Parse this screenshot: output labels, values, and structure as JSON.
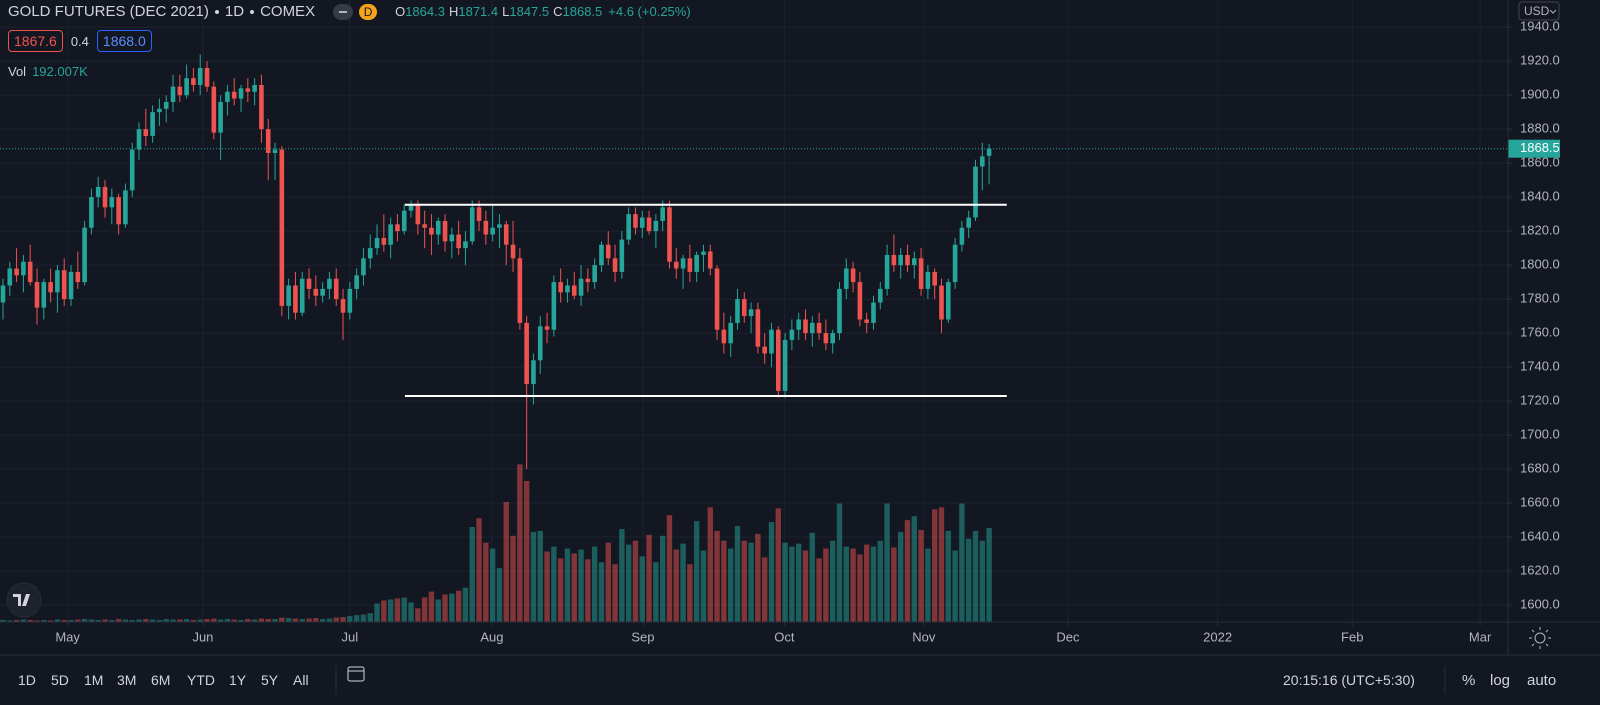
{
  "header": {
    "symbol": "GOLD FUTURES (DEC 2021)",
    "interval": "1D",
    "exchange": "COMEX",
    "badge": "D",
    "ohlc": [
      {
        "key": "O",
        "value": "1864.3"
      },
      {
        "key": "H",
        "value": "1871.4"
      },
      {
        "key": "L",
        "value": "1847.5"
      },
      {
        "key": "C",
        "value": "1868.5"
      }
    ],
    "change": "+4.6 (+0.25%)",
    "bid": "1867.6",
    "spread": "0.4",
    "ask": "1868.0",
    "vol_title": "Vol",
    "vol_value": "192.007K"
  },
  "chart_data": {
    "type": "candlestick",
    "currency": "USD",
    "grid": true,
    "colors": {
      "up": "#26a69a",
      "down": "#ef5350"
    },
    "ylim": [
      1590,
      1956
    ],
    "yticks": [
      {
        "value": 1600,
        "label": "1600.0"
      },
      {
        "value": 1620,
        "label": "1620.0"
      },
      {
        "value": 1640,
        "label": "1640.0"
      },
      {
        "value": 1660,
        "label": "1660.0"
      },
      {
        "value": 1680,
        "label": "1680.0"
      },
      {
        "value": 1700,
        "label": "1700.0"
      },
      {
        "value": 1720,
        "label": "1720.0"
      },
      {
        "value": 1740,
        "label": "1740.0"
      },
      {
        "value": 1760,
        "label": "1760.0"
      },
      {
        "value": 1780,
        "label": "1780.0"
      },
      {
        "value": 1800,
        "label": "1800.0"
      },
      {
        "value": 1820,
        "label": "1820.0"
      },
      {
        "value": 1840,
        "label": "1840.0"
      },
      {
        "value": 1860,
        "label": "1860.0"
      },
      {
        "value": 1880,
        "label": "1880.0"
      },
      {
        "value": 1900,
        "label": "1900.0"
      },
      {
        "value": 1920,
        "label": "1920.0"
      },
      {
        "value": 1940,
        "label": "1940.0"
      }
    ],
    "xlim": [
      -0.44,
      221.3
    ],
    "xticks": [
      {
        "value": 9.5,
        "label": "May"
      },
      {
        "value": 29.4,
        "label": "Jun"
      },
      {
        "value": 51,
        "label": "Jul"
      },
      {
        "value": 71.9,
        "label": "Aug"
      },
      {
        "value": 94.1,
        "label": "Sep"
      },
      {
        "value": 114.9,
        "label": "Oct"
      },
      {
        "value": 135.4,
        "label": "Nov"
      },
      {
        "value": 156.6,
        "label": "Dec"
      },
      {
        "value": 178.6,
        "label": "2022"
      },
      {
        "value": 198.4,
        "label": "Feb"
      },
      {
        "value": 217.2,
        "label": "Mar"
      }
    ],
    "last_price": 1868.5,
    "volume_lim": [
      0,
      1270
    ],
    "lines": [
      {
        "price": 1835.5,
        "x": [
          59.1,
          147.6
        ]
      },
      {
        "price": 1723,
        "x": [
          59.1,
          147.6
        ]
      }
    ],
    "candles": [
      [
        1778,
        1792,
        1768,
        1788
      ],
      [
        1788,
        1802,
        1782,
        1798
      ],
      [
        1798,
        1810,
        1790,
        1794
      ],
      [
        1794,
        1806,
        1784,
        1802
      ],
      [
        1802,
        1812,
        1788,
        1790
      ],
      [
        1790,
        1798,
        1765,
        1775
      ],
      [
        1775,
        1792,
        1768,
        1790
      ],
      [
        1790,
        1798,
        1778,
        1784
      ],
      [
        1784,
        1800,
        1772,
        1797
      ],
      [
        1797,
        1804,
        1776,
        1780
      ],
      [
        1780,
        1800,
        1776,
        1796
      ],
      [
        1796,
        1808,
        1786,
        1790
      ],
      [
        1790,
        1826,
        1788,
        1822
      ],
      [
        1822,
        1845,
        1818,
        1840
      ],
      [
        1840,
        1852,
        1834,
        1846
      ],
      [
        1846,
        1850,
        1828,
        1834
      ],
      [
        1834,
        1845,
        1824,
        1840
      ],
      [
        1840,
        1842,
        1818,
        1824
      ],
      [
        1824,
        1848,
        1822,
        1844
      ],
      [
        1844,
        1872,
        1840,
        1868
      ],
      [
        1868,
        1884,
        1862,
        1880
      ],
      [
        1880,
        1892,
        1870,
        1876
      ],
      [
        1876,
        1894,
        1872,
        1890
      ],
      [
        1890,
        1898,
        1882,
        1892
      ],
      [
        1892,
        1900,
        1884,
        1896
      ],
      [
        1896,
        1912,
        1890,
        1905
      ],
      [
        1905,
        1912,
        1896,
        1900
      ],
      [
        1900,
        1918,
        1898,
        1910
      ],
      [
        1910,
        1916,
        1902,
        1906
      ],
      [
        1906,
        1924,
        1900,
        1916
      ],
      [
        1916,
        1920,
        1902,
        1905
      ],
      [
        1905,
        1908,
        1874,
        1878
      ],
      [
        1878,
        1900,
        1862,
        1896
      ],
      [
        1896,
        1906,
        1888,
        1902
      ],
      [
        1902,
        1910,
        1894,
        1898
      ],
      [
        1898,
        1906,
        1890,
        1904
      ],
      [
        1904,
        1910,
        1896,
        1902
      ],
      [
        1902,
        1910,
        1894,
        1906
      ],
      [
        1906,
        1912,
        1872,
        1880
      ],
      [
        1880,
        1886,
        1850,
        1866
      ],
      [
        1866,
        1872,
        1850,
        1868
      ],
      [
        1868,
        1870,
        1770,
        1776
      ],
      [
        1776,
        1792,
        1768,
        1788
      ],
      [
        1788,
        1796,
        1768,
        1772
      ],
      [
        1772,
        1796,
        1770,
        1792
      ],
      [
        1792,
        1798,
        1780,
        1786
      ],
      [
        1786,
        1794,
        1776,
        1782
      ],
      [
        1782,
        1790,
        1778,
        1786
      ],
      [
        1786,
        1796,
        1780,
        1792
      ],
      [
        1792,
        1798,
        1776,
        1780
      ],
      [
        1780,
        1786,
        1756,
        1772
      ],
      [
        1772,
        1790,
        1768,
        1786
      ],
      [
        1786,
        1798,
        1780,
        1794
      ],
      [
        1794,
        1810,
        1788,
        1804
      ],
      [
        1804,
        1818,
        1798,
        1810
      ],
      [
        1810,
        1824,
        1806,
        1816
      ],
      [
        1816,
        1830,
        1808,
        1812
      ],
      [
        1812,
        1828,
        1804,
        1824
      ],
      [
        1824,
        1830,
        1814,
        1820
      ],
      [
        1820,
        1836,
        1818,
        1832
      ],
      [
        1832,
        1838,
        1828,
        1836
      ],
      [
        1836,
        1838,
        1818,
        1824
      ],
      [
        1824,
        1832,
        1810,
        1822
      ],
      [
        1822,
        1830,
        1806,
        1818
      ],
      [
        1818,
        1828,
        1812,
        1826
      ],
      [
        1826,
        1830,
        1808,
        1814
      ],
      [
        1814,
        1822,
        1804,
        1818
      ],
      [
        1818,
        1826,
        1806,
        1810
      ],
      [
        1810,
        1820,
        1800,
        1814
      ],
      [
        1814,
        1838,
        1812,
        1834
      ],
      [
        1834,
        1838,
        1820,
        1826
      ],
      [
        1826,
        1832,
        1812,
        1818
      ],
      [
        1818,
        1836,
        1814,
        1822
      ],
      [
        1822,
        1830,
        1810,
        1824
      ],
      [
        1824,
        1826,
        1800,
        1812
      ],
      [
        1812,
        1826,
        1796,
        1804
      ],
      [
        1804,
        1810,
        1762,
        1766
      ],
      [
        1766,
        1770,
        1680,
        1730
      ],
      [
        1730,
        1748,
        1718,
        1744
      ],
      [
        1744,
        1770,
        1736,
        1764
      ],
      [
        1764,
        1772,
        1754,
        1762
      ],
      [
        1762,
        1794,
        1758,
        1790
      ],
      [
        1790,
        1798,
        1778,
        1784
      ],
      [
        1784,
        1792,
        1778,
        1788
      ],
      [
        1788,
        1796,
        1780,
        1782
      ],
      [
        1782,
        1800,
        1776,
        1792
      ],
      [
        1792,
        1798,
        1784,
        1790
      ],
      [
        1790,
        1804,
        1786,
        1800
      ],
      [
        1800,
        1814,
        1796,
        1812
      ],
      [
        1812,
        1820,
        1800,
        1804
      ],
      [
        1804,
        1812,
        1790,
        1796
      ],
      [
        1796,
        1820,
        1792,
        1815
      ],
      [
        1815,
        1834,
        1812,
        1830
      ],
      [
        1830,
        1834,
        1818,
        1822
      ],
      [
        1822,
        1832,
        1816,
        1828
      ],
      [
        1828,
        1832,
        1818,
        1820
      ],
      [
        1820,
        1830,
        1810,
        1826
      ],
      [
        1826,
        1838,
        1820,
        1834
      ],
      [
        1834,
        1838,
        1798,
        1802
      ],
      [
        1802,
        1810,
        1792,
        1798
      ],
      [
        1798,
        1806,
        1786,
        1804
      ],
      [
        1804,
        1812,
        1790,
        1796
      ],
      [
        1796,
        1808,
        1790,
        1806
      ],
      [
        1806,
        1812,
        1796,
        1808
      ],
      [
        1808,
        1812,
        1794,
        1798
      ],
      [
        1798,
        1800,
        1756,
        1762
      ],
      [
        1762,
        1772,
        1748,
        1754
      ],
      [
        1754,
        1770,
        1746,
        1766
      ],
      [
        1766,
        1786,
        1762,
        1780
      ],
      [
        1780,
        1784,
        1766,
        1770
      ],
      [
        1770,
        1778,
        1760,
        1774
      ],
      [
        1774,
        1778,
        1748,
        1752
      ],
      [
        1752,
        1760,
        1742,
        1748
      ],
      [
        1748,
        1766,
        1740,
        1762
      ],
      [
        1762,
        1764,
        1722,
        1726
      ],
      [
        1726,
        1760,
        1722,
        1756
      ],
      [
        1756,
        1768,
        1750,
        1762
      ],
      [
        1762,
        1772,
        1756,
        1768
      ],
      [
        1768,
        1774,
        1756,
        1760
      ],
      [
        1760,
        1770,
        1752,
        1766
      ],
      [
        1766,
        1772,
        1756,
        1760
      ],
      [
        1760,
        1768,
        1750,
        1754
      ],
      [
        1754,
        1762,
        1748,
        1760
      ],
      [
        1760,
        1790,
        1756,
        1786
      ],
      [
        1786,
        1804,
        1780,
        1798
      ],
      [
        1798,
        1802,
        1784,
        1790
      ],
      [
        1790,
        1796,
        1764,
        1768
      ],
      [
        1768,
        1772,
        1760,
        1766
      ],
      [
        1766,
        1782,
        1762,
        1778
      ],
      [
        1778,
        1790,
        1774,
        1786
      ],
      [
        1786,
        1812,
        1782,
        1806
      ],
      [
        1806,
        1818,
        1796,
        1800
      ],
      [
        1800,
        1810,
        1792,
        1806
      ],
      [
        1806,
        1812,
        1796,
        1800
      ],
      [
        1800,
        1808,
        1792,
        1804
      ],
      [
        1804,
        1810,
        1782,
        1786
      ],
      [
        1786,
        1800,
        1780,
        1796
      ],
      [
        1796,
        1798,
        1780,
        1788
      ],
      [
        1788,
        1792,
        1760,
        1768
      ],
      [
        1768,
        1792,
        1766,
        1790
      ],
      [
        1790,
        1816,
        1786,
        1812
      ],
      [
        1812,
        1826,
        1808,
        1822
      ],
      [
        1822,
        1832,
        1816,
        1828
      ],
      [
        1828,
        1862,
        1826,
        1858
      ],
      [
        1858,
        1872,
        1844,
        1864
      ],
      [
        1864.3,
        1871.4,
        1847.5,
        1868.5
      ]
    ],
    "volume": [
      4,
      3,
      4,
      5,
      4,
      3,
      4,
      3,
      5,
      4,
      4,
      5,
      6,
      5,
      4,
      5,
      4,
      6,
      5,
      4,
      5,
      6,
      5,
      4,
      6,
      5,
      5,
      6,
      4,
      5,
      6,
      7,
      5,
      6,
      5,
      4,
      6,
      5,
      7,
      6,
      6,
      9,
      8,
      7,
      6,
      7,
      8,
      6,
      7,
      9,
      10,
      12,
      14,
      15,
      18,
      38,
      44,
      46,
      48,
      50,
      40,
      28,
      50,
      62,
      46,
      56,
      58,
      64,
      70,
      194,
      212,
      162,
      150,
      110,
      245,
      176,
      322,
      288,
      184,
      186,
      144,
      154,
      130,
      150,
      140,
      148,
      128,
      154,
      122,
      162,
      118,
      190,
      158,
      166,
      134,
      178,
      122,
      176,
      218,
      148,
      160,
      118,
      206,
      146,
      234,
      186,
      166,
      150,
      196,
      166,
      162,
      180,
      132,
      204,
      232,
      162,
      154,
      160,
      146,
      182,
      130,
      150,
      166,
      242,
      154,
      150,
      138,
      158,
      154,
      166,
      242,
      152,
      184,
      208,
      216,
      188,
      150,
      230,
      234,
      186,
      146,
      242,
      170,
      186,
      166,
      192.007
    ]
  },
  "toolbar": {
    "ranges": [
      "1D",
      "5D",
      "1M",
      "3M",
      "6M",
      "YTD",
      "1Y",
      "5Y",
      "All"
    ],
    "clock": "20:15:16 (UTC+5:30)",
    "options": [
      "%",
      "log",
      "auto"
    ]
  }
}
